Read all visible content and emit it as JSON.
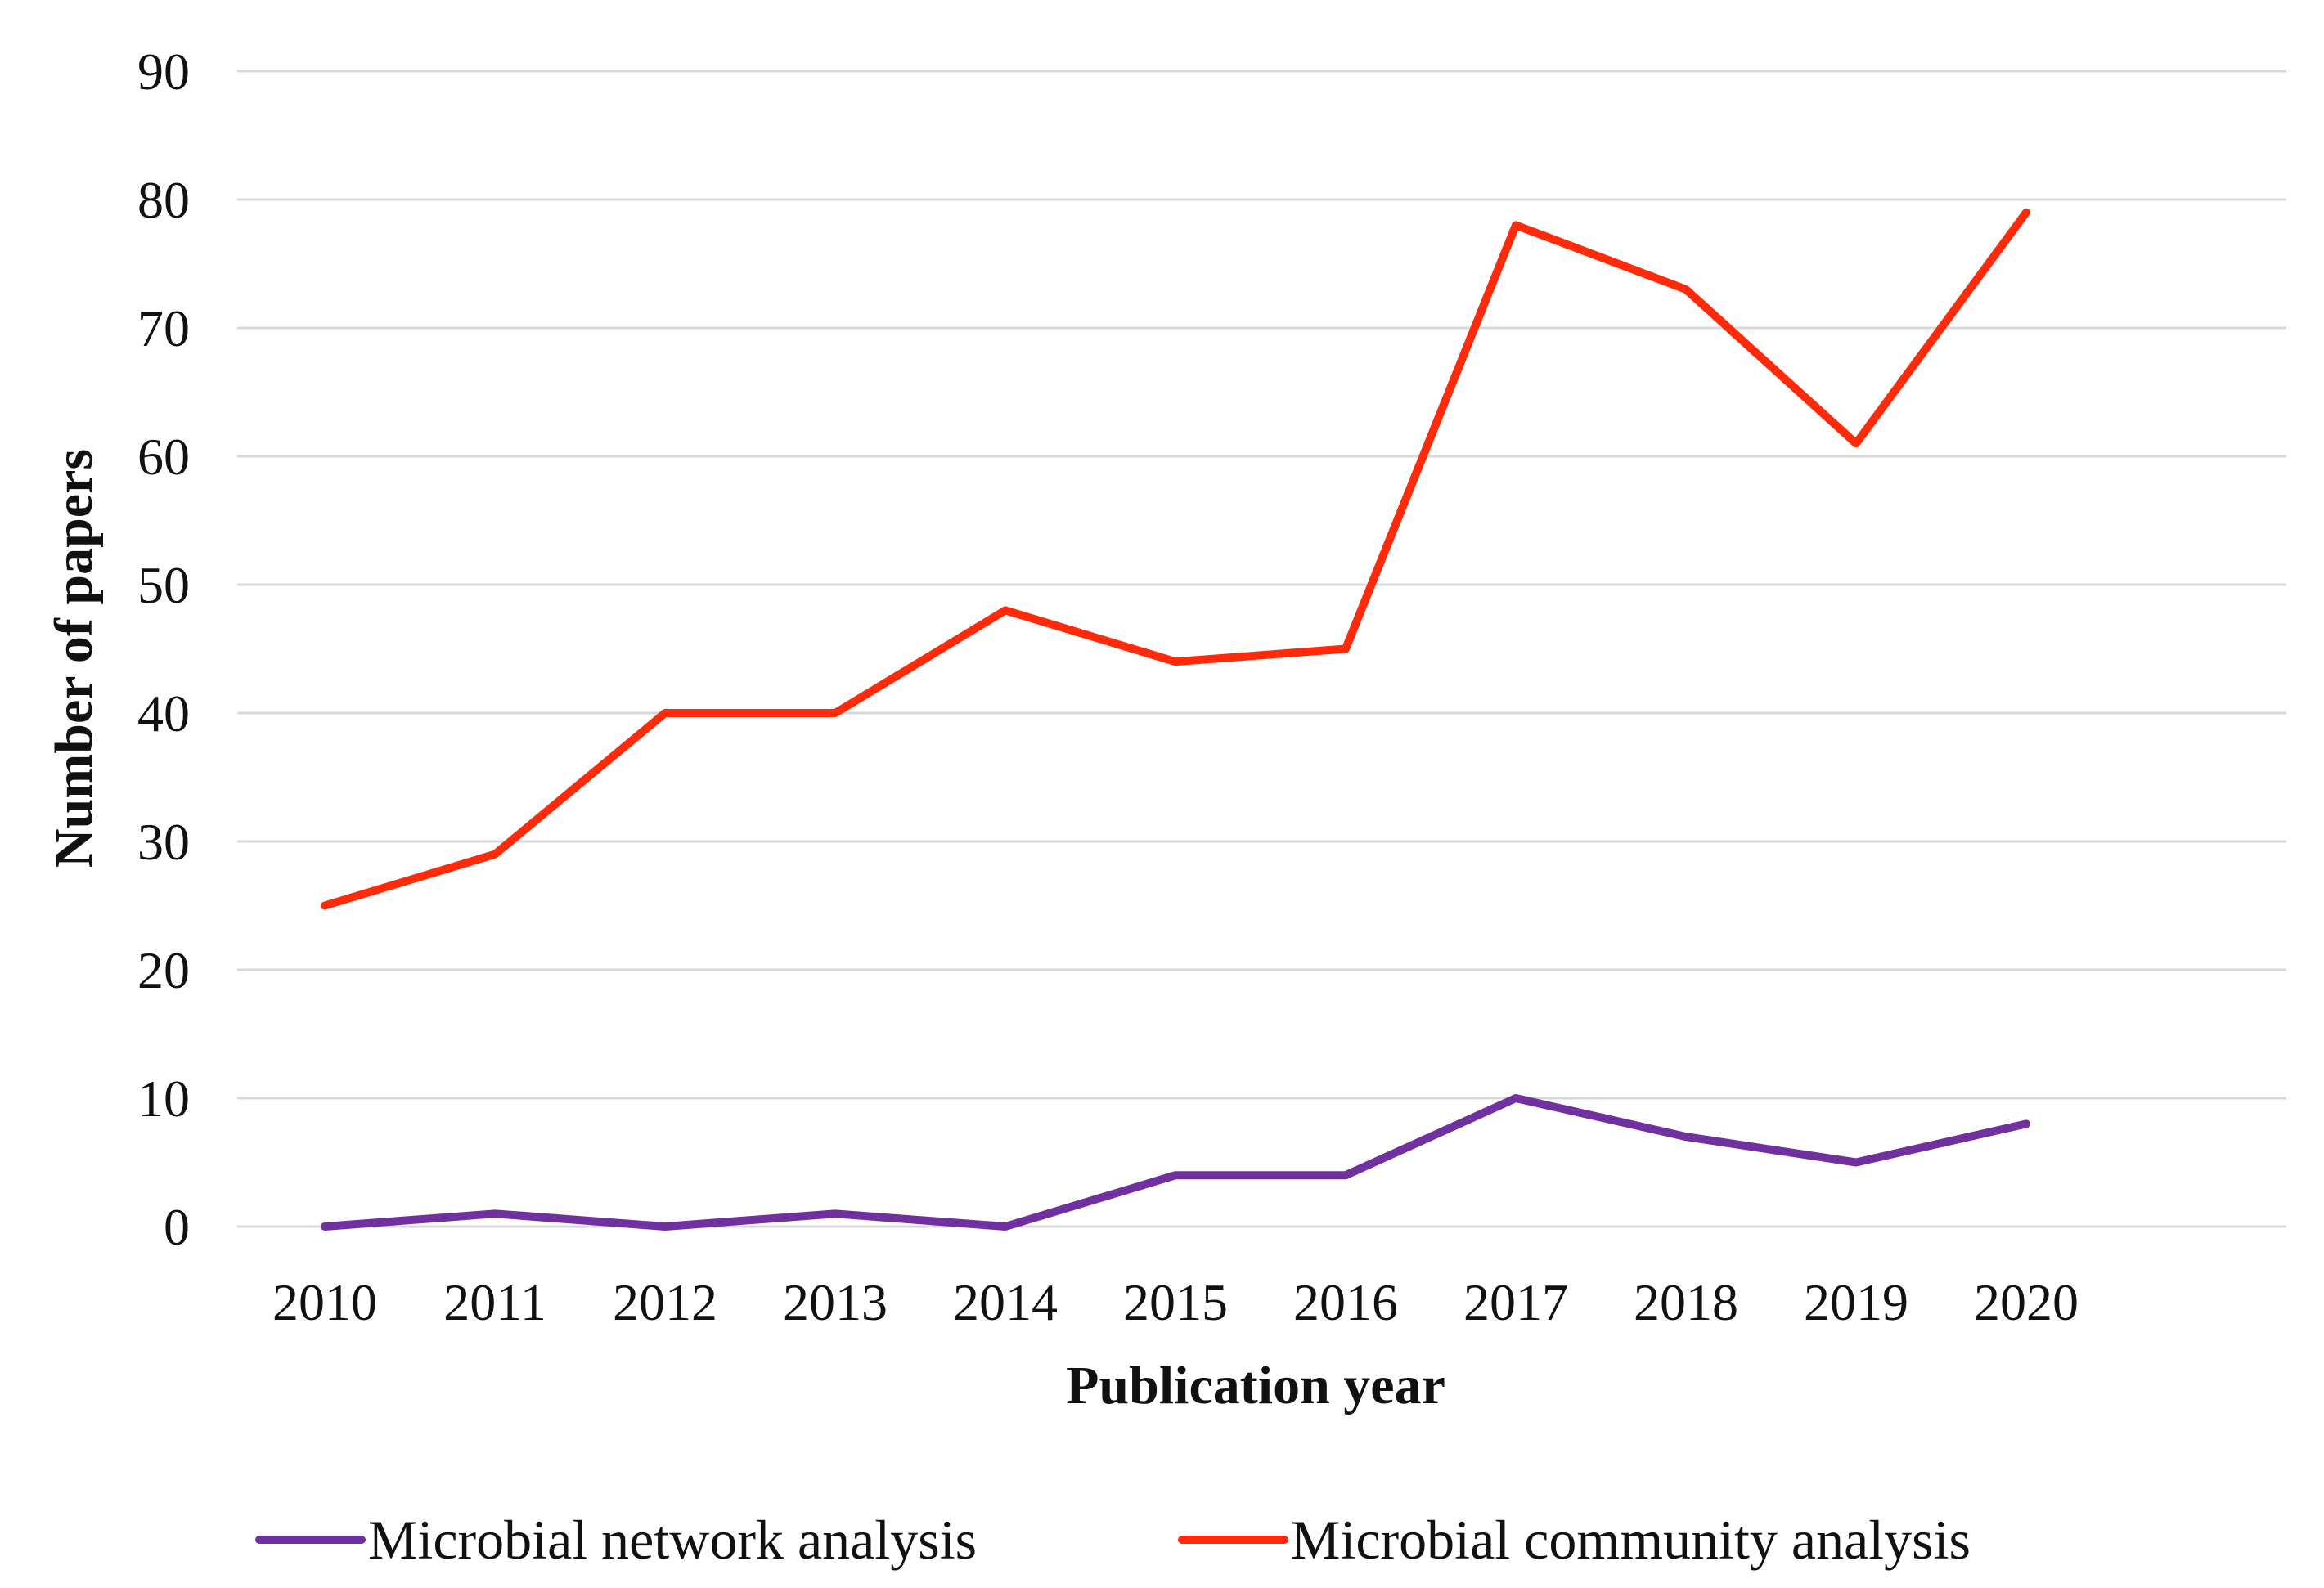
{
  "chart_data": {
    "type": "line",
    "title": "",
    "xlabel": "Publication  year",
    "ylabel": "Number  of  papers",
    "categories": [
      "2010",
      "2011",
      "2012",
      "2013",
      "2014",
      "2015",
      "2016",
      "2017",
      "2018",
      "2019",
      "2020"
    ],
    "yticks": [
      "0",
      "10",
      "20",
      "30",
      "40",
      "50",
      "60",
      "70",
      "80",
      "90"
    ],
    "ylim": [
      0,
      90
    ],
    "grid": true,
    "legend_position": "bottom",
    "series": [
      {
        "name": "Microbial network analysis",
        "color": "#7030a0",
        "values": [
          0,
          1,
          0,
          1,
          0,
          4,
          4,
          10,
          7,
          5,
          8
        ]
      },
      {
        "name": "Microbial community analysis",
        "color": "#ff2a0a",
        "values": [
          25,
          29,
          40,
          40,
          48,
          44,
          45,
          78,
          73,
          61,
          79
        ]
      }
    ]
  }
}
